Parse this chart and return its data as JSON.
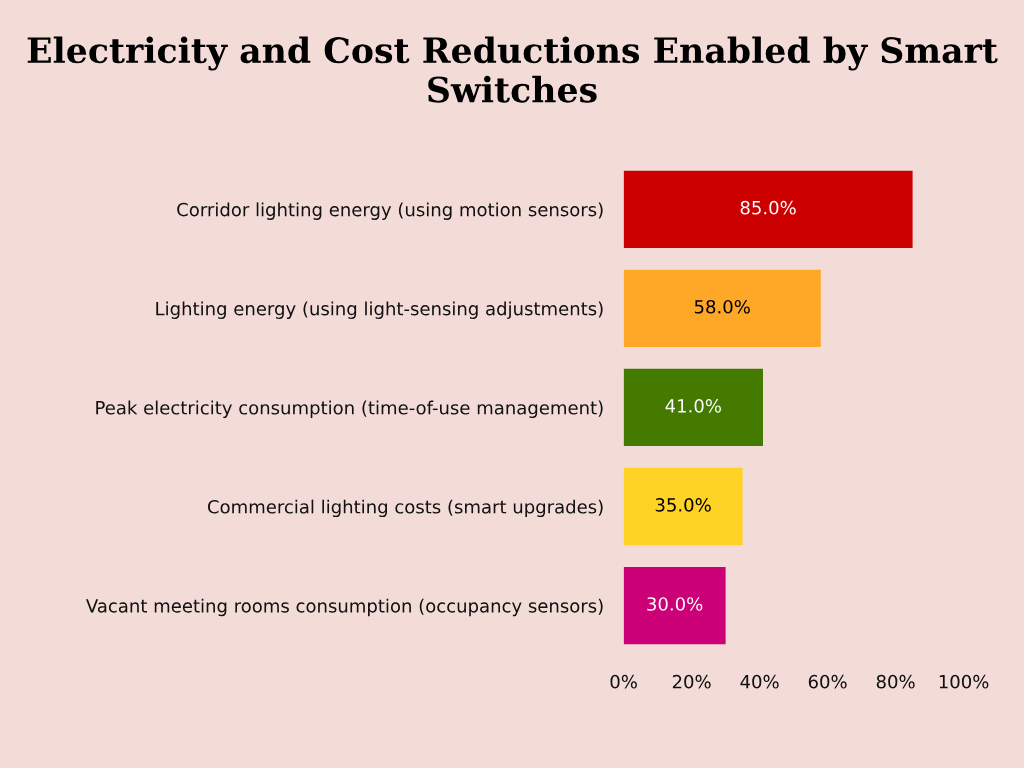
{
  "chart_data": {
    "type": "bar",
    "orientation": "horizontal",
    "title": "Electricity and Cost Reductions Enabled by Smart Switches",
    "categories": [
      "Corridor lighting energy (using motion sensors)",
      "Lighting energy (using light-sensing adjustments)",
      "Peak electricity consumption (time-of-use management)",
      "Commercial lighting costs (smart upgrades)",
      "Vacant meeting rooms consumption (occupancy sensors)"
    ],
    "values": [
      85,
      58,
      41,
      35,
      30
    ],
    "colors": [
      "#cc0000",
      "#ffa726",
      "#457a00",
      "#ffd326",
      "#cc0077"
    ],
    "value_labels": [
      "85.0%",
      "58.0%",
      "41.0%",
      "35.0%",
      "30.0%"
    ],
    "xlim": [
      0,
      100
    ],
    "xticks": [
      {
        "value": 0,
        "label": "0%"
      },
      {
        "value": 20,
        "label": "20%"
      },
      {
        "value": 40,
        "label": "40%"
      },
      {
        "value": 60,
        "label": "60%"
      },
      {
        "value": 80,
        "label": "80%"
      },
      {
        "value": 100,
        "label": "100%"
      }
    ],
    "grid": false,
    "legend": false
  }
}
